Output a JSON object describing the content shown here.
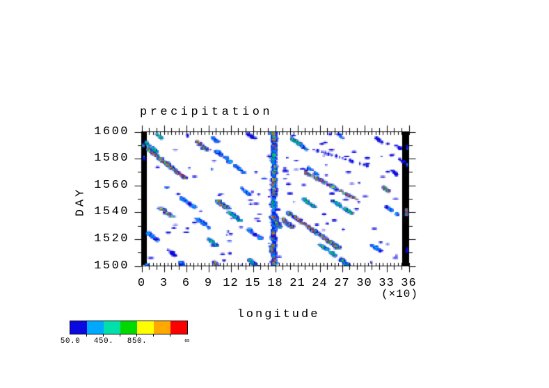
{
  "chart_data": {
    "type": "heatmap",
    "title": "precipitation",
    "xlabel": "longitude",
    "x_scale_note": "(×10)",
    "ylabel": "DAY",
    "xlim": [
      0,
      360
    ],
    "ylim": [
      1500,
      1600
    ],
    "xtick_values": [
      0,
      30,
      60,
      90,
      120,
      150,
      180,
      210,
      240,
      270,
      300,
      330,
      360
    ],
    "xtick_labels": [
      "0",
      "3",
      "6",
      "9",
      "12",
      "15",
      "18",
      "21",
      "24",
      "27",
      "30",
      "33",
      "36"
    ],
    "ytick_values": [
      1600,
      1580,
      1560,
      1540,
      1520,
      1500
    ],
    "ytick_labels": [
      "1600",
      "1580",
      "1560",
      "1540",
      "1520",
      "1500"
    ],
    "x_minor_step": 10,
    "x_fine_step": 5,
    "y_minor_step": 10,
    "grid": false,
    "frame_color": "#000000",
    "edge_bar_color": "#000000",
    "palette": [
      "#0a0ae0",
      "#00a8ff",
      "#00e0a8",
      "#00d800",
      "#ffff00",
      "#ffa800",
      "#fa0000"
    ],
    "colorbar": {
      "segment_colors": [
        "#0a0ae0",
        "#00a8ff",
        "#00e0a8",
        "#00d800",
        "#ffff00",
        "#ffa800",
        "#fa0000"
      ],
      "boundary_values": [
        50,
        250,
        450,
        650,
        850,
        1050,
        1250
      ],
      "tick_labels": [
        {
          "text": "50.0",
          "boundary_index": 0
        },
        {
          "text": "450.",
          "boundary_index": 2
        },
        {
          "text": "850.",
          "boundary_index": 4
        },
        {
          "text": "∞",
          "boundary_index": 7
        }
      ]
    },
    "features": [
      {
        "x": 30,
        "d": 1578,
        "L": 24,
        "s": -2.3,
        "w": 5,
        "i": 4
      },
      {
        "x": 12,
        "d": 1589,
        "L": 7,
        "s": -2.0,
        "w": 4,
        "i": 3
      },
      {
        "x": 80,
        "d": 1590,
        "L": 6,
        "s": -2.0,
        "w": 5,
        "i": 4
      },
      {
        "x": 98,
        "d": 1595,
        "L": 4,
        "s": -2.0,
        "w": 4,
        "i": 2
      },
      {
        "x": 23,
        "d": 1597,
        "L": 3,
        "s": -2.0,
        "w": 3,
        "i": 3
      },
      {
        "x": 60,
        "d": 1598,
        "L": 2,
        "s": -2.0,
        "w": 3,
        "i": 1
      },
      {
        "x": 148,
        "d": 1597,
        "L": 3,
        "s": -3.0,
        "w": 4,
        "i": 1
      },
      {
        "x": 108,
        "d": 1583,
        "L": 5,
        "s": -2.5,
        "w": 4,
        "i": 2
      },
      {
        "x": 128,
        "d": 1574,
        "L": 8,
        "s": -2.5,
        "w": 4,
        "i": 2
      },
      {
        "x": 33,
        "d": 1540,
        "L": 6,
        "s": -2.5,
        "w": 5,
        "i": 4
      },
      {
        "x": 62,
        "d": 1547,
        "L": 8,
        "s": -2.5,
        "w": 4,
        "i": 2
      },
      {
        "x": 108,
        "d": 1546,
        "L": 6,
        "s": -2.5,
        "w": 5,
        "i": 4
      },
      {
        "x": 125,
        "d": 1537,
        "L": 6,
        "s": -2.5,
        "w": 4,
        "i": 3
      },
      {
        "x": 82,
        "d": 1532,
        "L": 7,
        "s": -2.5,
        "w": 4,
        "i": 2
      },
      {
        "x": 15,
        "d": 1522,
        "L": 5,
        "s": -2.0,
        "w": 4,
        "i": 2
      },
      {
        "x": 40,
        "d": 1510,
        "L": 4,
        "s": -2.0,
        "w": 3,
        "i": 1
      },
      {
        "x": 95,
        "d": 1518,
        "L": 5,
        "s": -2.5,
        "w": 4,
        "i": 3
      },
      {
        "x": 152,
        "d": 1524,
        "L": 6,
        "s": -2.5,
        "w": 4,
        "i": 2
      },
      {
        "x": 140,
        "d": 1556,
        "L": 5,
        "s": -2.5,
        "w": 3,
        "i": 2
      },
      {
        "x": 55,
        "d": 1501,
        "L": 4,
        "s": -1.5,
        "w": 5,
        "i": 2
      },
      {
        "x": 100,
        "d": 1501,
        "L": 4,
        "s": -1.5,
        "w": 5,
        "i": 4
      },
      {
        "x": 150,
        "d": 1502,
        "L": 5,
        "s": -2.0,
        "w": 5,
        "i": 3
      },
      {
        "x": 178,
        "d": 1550,
        "L": 100,
        "s": 0,
        "w": 4,
        "i": 2
      },
      {
        "x": 178,
        "d": 1596,
        "L": 6,
        "s": 0,
        "w": 6,
        "i": 4
      },
      {
        "x": 179,
        "d": 1589,
        "L": 4,
        "s": 0,
        "w": 5,
        "i": 4
      },
      {
        "x": 177,
        "d": 1581,
        "L": 4,
        "s": 0,
        "w": 4,
        "i": 3
      },
      {
        "x": 179,
        "d": 1572,
        "L": 5,
        "s": 0,
        "w": 5,
        "i": 4
      },
      {
        "x": 177,
        "d": 1563,
        "L": 4,
        "s": 0,
        "w": 5,
        "i": 4
      },
      {
        "x": 178,
        "d": 1556,
        "L": 5,
        "s": 0,
        "w": 5,
        "i": 4
      },
      {
        "x": 176,
        "d": 1546,
        "L": 4,
        "s": 0,
        "w": 4,
        "i": 3
      },
      {
        "x": 181,
        "d": 1533,
        "L": 7,
        "s": -1,
        "w": 6,
        "i": 4
      },
      {
        "x": 177,
        "d": 1523,
        "L": 4,
        "s": 0,
        "w": 5,
        "i": 4
      },
      {
        "x": 176,
        "d": 1513,
        "L": 5,
        "s": 0,
        "w": 5,
        "i": 4
      },
      {
        "x": 178,
        "d": 1504,
        "L": 5,
        "s": 0,
        "w": 5,
        "i": 4
      },
      {
        "x": 212,
        "d": 1591,
        "L": 8,
        "s": -2.5,
        "w": 4,
        "i": 3
      },
      {
        "x": 268,
        "d": 1581,
        "L": 12,
        "s": -6.0,
        "w": 2,
        "i": 1
      },
      {
        "x": 268,
        "d": 1597,
        "L": 3,
        "s": -2.0,
        "w": 4,
        "i": 2
      },
      {
        "x": 320,
        "d": 1594,
        "L": 3,
        "s": -2.0,
        "w": 3,
        "i": 1
      },
      {
        "x": 230,
        "d": 1571,
        "L": 5,
        "s": -2.5,
        "w": 3,
        "i": 2
      },
      {
        "x": 255,
        "d": 1560,
        "L": 20,
        "s": -3.5,
        "w": 4,
        "i": 4
      },
      {
        "x": 225,
        "d": 1547,
        "L": 6,
        "s": -2.5,
        "w": 4,
        "i": 3
      },
      {
        "x": 328,
        "d": 1558,
        "L": 4,
        "s": -2.5,
        "w": 4,
        "i": 4
      },
      {
        "x": 270,
        "d": 1544,
        "L": 9,
        "s": -2.8,
        "w": 4,
        "i": 3
      },
      {
        "x": 230,
        "d": 1527,
        "L": 26,
        "s": -2.6,
        "w": 5,
        "i": 4
      },
      {
        "x": 196,
        "d": 1532,
        "L": 6,
        "s": -2.0,
        "w": 5,
        "i": 4
      },
      {
        "x": 315,
        "d": 1514,
        "L": 5,
        "s": -2.5,
        "w": 4,
        "i": 2
      },
      {
        "x": 275,
        "d": 1502,
        "L": 5,
        "s": -2.0,
        "w": 5,
        "i": 3
      },
      {
        "x": 250,
        "d": 1512,
        "L": 8,
        "s": -2.5,
        "w": 4,
        "i": 3
      },
      {
        "x": 338,
        "d": 1541,
        "L": 6,
        "s": -2.5,
        "w": 3,
        "i": 2
      },
      {
        "x": 358,
        "d": 1589,
        "L": 2,
        "s": 0,
        "w": 3,
        "i": 2
      },
      {
        "x": 357,
        "d": 1576,
        "L": 2,
        "s": 0,
        "w": 2,
        "i": 2
      },
      {
        "x": 357,
        "d": 1540,
        "L": 4,
        "s": 0,
        "w": 4,
        "i": 4
      },
      {
        "x": 358,
        "d": 1512,
        "L": 2,
        "s": 0,
        "w": 3,
        "i": 1
      },
      {
        "x": 345,
        "d": 1589,
        "L": 2,
        "s": -2,
        "w": 3,
        "i": 1
      },
      {
        "x": 350,
        "d": 1579,
        "L": 2,
        "s": -2,
        "w": 3,
        "i": 1
      },
      {
        "x": 340,
        "d": 1570,
        "L": 3,
        "s": -2,
        "w": 3,
        "i": 1
      },
      {
        "x": 2,
        "d": 1591,
        "L": 1.5,
        "s": 0,
        "w": 2,
        "i": 3
      },
      {
        "x": 2,
        "d": 1581,
        "L": 1.5,
        "s": 0,
        "w": 2,
        "i": 2
      },
      {
        "x": 6,
        "d": 1500,
        "L": 2,
        "s": 0,
        "w": 3,
        "i": 2
      }
    ],
    "speckles": {
      "seed": 7,
      "count": 110,
      "lon_range": [
        8,
        350
      ],
      "day_range": [
        1500,
        1599
      ],
      "len_range": [
        3,
        9
      ],
      "cyan_fraction": 0.12
    }
  }
}
